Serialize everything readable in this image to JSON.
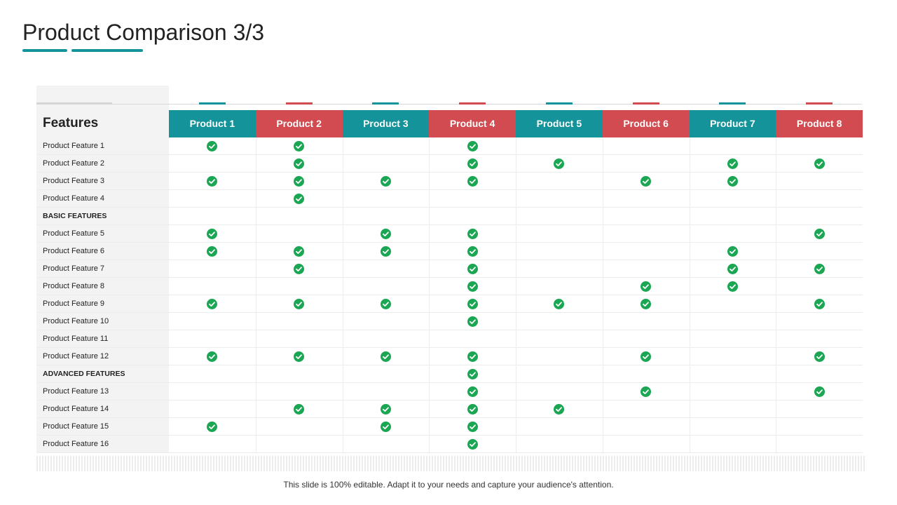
{
  "title": "Product Comparison 3/3",
  "features_header": "Features",
  "colors": {
    "teal": "#14939a",
    "red": "#d24b50",
    "check": "#1aa652"
  },
  "products": [
    "Product 1",
    "Product 2",
    "Product 3",
    "Product 4",
    "Product 5",
    "Product 6",
    "Product 7",
    "Product 8"
  ],
  "rows": [
    {
      "label": "Product Feature 1",
      "checks": [
        1,
        2,
        4
      ]
    },
    {
      "label": "Product Feature 2",
      "checks": [
        2,
        4,
        5,
        7,
        8
      ]
    },
    {
      "label": "Product Feature 3",
      "checks": [
        1,
        2,
        3,
        4,
        6,
        7
      ]
    },
    {
      "label": "Product Feature 4",
      "checks": [
        2
      ]
    },
    {
      "label": "BASIC FEATURES",
      "section": true,
      "checks": []
    },
    {
      "label": "Product Feature 5",
      "checks": [
        1,
        3,
        4,
        8
      ]
    },
    {
      "label": "Product Feature 6",
      "checks": [
        1,
        2,
        3,
        4,
        7
      ]
    },
    {
      "label": "Product Feature 7",
      "checks": [
        2,
        4,
        7,
        8
      ]
    },
    {
      "label": "Product Feature 8",
      "checks": [
        4,
        6,
        7
      ]
    },
    {
      "label": "Product Feature 9",
      "checks": [
        1,
        2,
        3,
        4,
        5,
        6,
        8
      ]
    },
    {
      "label": "Product Feature 10",
      "checks": [
        4
      ]
    },
    {
      "label": "Product Feature 11",
      "checks": []
    },
    {
      "label": "Product Feature 12",
      "checks": [
        1,
        2,
        3,
        4,
        6,
        8
      ]
    },
    {
      "label": "ADVANCED FEATURES",
      "section": true,
      "checks": [
        4
      ]
    },
    {
      "label": "Product Feature 13",
      "checks": [
        4,
        6,
        8
      ]
    },
    {
      "label": "Product Feature 14",
      "checks": [
        2,
        3,
        4,
        5
      ]
    },
    {
      "label": "Product Feature 15",
      "checks": [
        1,
        3,
        4
      ]
    },
    {
      "label": "Product Feature 16",
      "checks": [
        4
      ]
    }
  ],
  "footer": "This slide is 100% editable. Adapt it to your needs and capture your audience's attention."
}
